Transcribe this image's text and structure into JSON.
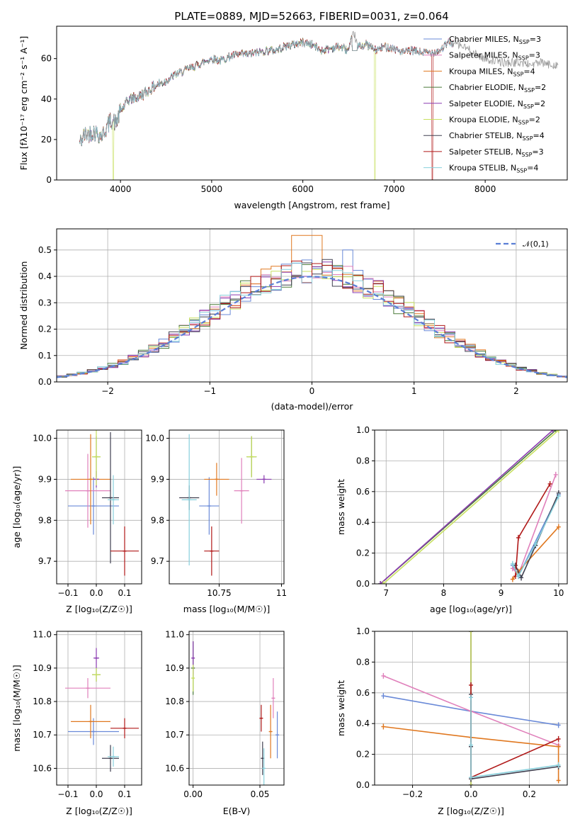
{
  "figure": {
    "title": "PLATE=0889, MJD=52663, FIBERID=0031, z=0.064"
  },
  "colors": {
    "chabrier_miles": "#6a8ad8",
    "salpeter_miles": "#e080bb",
    "kroupa_miles": "#e07820",
    "chabrier_elodie": "#4a7a3a",
    "salpeter_elodie": "#8a3ab0",
    "kroupa_elodie": "#c8e060",
    "chabrier_stelib": "#404050",
    "salpeter_stelib": "#b01818",
    "kroupa_stelib": "#88d0dc",
    "gauss": "#5b7fd6",
    "grid": "#b0b0b0"
  },
  "chart_data": [
    {
      "id": "spectrum",
      "type": "line",
      "title": "PLATE=0889, MJD=52663, FIBERID=0031, z=0.064",
      "xlabel": "wavelength [Angstrom, rest frame]",
      "ylabel": "Flux [fλ10⁻¹⁷ erg cm⁻² s⁻¹ A⁻¹]",
      "xlim": [
        3300,
        8900
      ],
      "ylim": [
        0,
        76
      ],
      "xticks": [
        4000,
        5000,
        6000,
        7000,
        8000
      ],
      "yticks": [
        0,
        20,
        40,
        60
      ],
      "grid": false,
      "legend_position": "top-right",
      "legend": [
        "Chabrier MILES, N_SSP=3",
        "Salpeter MILES, N_SSP=3",
        "Kroupa MILES, N_SSP=4",
        "Chabrier ELODIE, N_SSP=2",
        "Salpeter ELODIE, N_SSP=2",
        "Kroupa ELODIE, N_SSP=2",
        "Chabrier STELIB, N_SSP=4",
        "Salpeter STELIB, N_SSP=3",
        "Kroupa STELIB, N_SSP=4"
      ],
      "data_curve": {
        "x": [
          3550,
          3600,
          3700,
          3800,
          3850,
          3900,
          3950,
          4000,
          4050,
          4100,
          4200,
          4300,
          4400,
          4500,
          4600,
          4700,
          4800,
          4900,
          5000,
          5100,
          5200,
          5300,
          5400,
          5500,
          5600,
          5700,
          5800,
          5900,
          6000,
          6100,
          6200,
          6300,
          6400,
          6500,
          6560,
          6600,
          6700,
          6800,
          6900,
          7000,
          7100,
          7200,
          7300,
          7400,
          7500,
          7600,
          7700,
          7800,
          7900,
          8000,
          8100,
          8200,
          8300,
          8400,
          8500,
          8600,
          8700,
          8800
        ],
        "y": [
          18,
          22,
          24,
          22,
          26,
          30,
          28,
          34,
          37,
          40,
          41,
          44,
          47,
          49,
          52,
          54,
          56,
          58,
          60,
          59,
          61,
          62,
          62,
          63,
          64,
          64,
          66,
          67,
          68,
          67,
          64,
          65,
          66,
          64,
          73,
          66,
          67,
          64,
          66,
          65,
          63,
          64,
          63,
          63,
          64,
          68,
          67,
          65,
          62,
          60,
          59,
          58,
          58,
          58,
          57,
          58,
          57,
          57
        ]
      },
      "model_dropouts": [
        {
          "series": "Kroupa ELODIE",
          "x": 3920
        },
        {
          "series": "Kroupa ELODIE",
          "x": 6790
        },
        {
          "series": "Salpeter STELIB",
          "x": 7420
        }
      ]
    },
    {
      "id": "residuals",
      "type": "histogram",
      "xlabel": "(data-model)/error",
      "ylabel": "Normed distribution",
      "xlim": [
        -2.5,
        2.5
      ],
      "ylim": [
        0,
        0.58
      ],
      "xticks": [
        -2,
        -1,
        0,
        1,
        2
      ],
      "yticks": [
        0.0,
        0.1,
        0.2,
        0.3,
        0.4,
        0.5
      ],
      "grid": true,
      "legend_position": "top-right",
      "legend": [
        "𝒩(0,1)"
      ],
      "gaussian": {
        "mean": 0,
        "sigma": 1
      },
      "bin_width": 0.1
    },
    {
      "id": "age_vs_Z",
      "type": "errorbar",
      "xlabel": "Z [log₁₀(Z/Z☉)]",
      "ylabel": "age [log₁₀(age/yr)]",
      "xlim": [
        -0.14,
        0.16
      ],
      "ylim": [
        9.645,
        10.02
      ],
      "xticks": [
        -0.1,
        0.0,
        0.1
      ],
      "yticks": [
        9.7,
        9.8,
        9.9,
        10.0
      ],
      "grid": true,
      "points": [
        {
          "series": "Chabrier MILES",
          "x": -0.01,
          "y": 9.835,
          "xerr": 0.09,
          "yerr": 0.07
        },
        {
          "series": "Salpeter MILES",
          "x": -0.03,
          "y": 9.872,
          "xerr": 0.08,
          "yerr": 0.09
        },
        {
          "series": "Kroupa MILES",
          "x": -0.02,
          "y": 9.9,
          "xerr": 0.07,
          "yerr": 0.11
        },
        {
          "series": "Chabrier ELODIE",
          "x": 0.0,
          "y": 9.955,
          "xerr": 0.015,
          "yerr": 0.05
        },
        {
          "series": "Salpeter ELODIE",
          "x": 0.0,
          "y": 9.9,
          "xerr": 0.01,
          "yerr": 0.02
        },
        {
          "series": "Kroupa ELODIE",
          "x": 0.0,
          "y": 9.955,
          "xerr": 0.015,
          "yerr": 0.07
        },
        {
          "series": "Chabrier STELIB",
          "x": 0.05,
          "y": 9.855,
          "xerr": 0.03,
          "yerr": 0.16
        },
        {
          "series": "Salpeter STELIB",
          "x": 0.1,
          "y": 9.725,
          "xerr": 0.05,
          "yerr": 0.06
        },
        {
          "series": "Kroupa STELIB",
          "x": 0.06,
          "y": 9.85,
          "xerr": 0.02,
          "yerr": 0.06
        }
      ]
    },
    {
      "id": "age_vs_mass",
      "type": "errorbar",
      "xlabel": "mass [log₁₀(M/M☉)]",
      "ylabel": "",
      "xlim": [
        10.55,
        11.01
      ],
      "ylim": [
        9.645,
        10.02
      ],
      "xticks": [
        10.75,
        11.0
      ],
      "yticks": [
        9.7,
        9.8,
        9.9,
        10.0
      ],
      "grid": true,
      "points": [
        {
          "series": "Chabrier MILES",
          "x": 10.71,
          "y": 9.835,
          "xerr": 0.04,
          "yerr": 0.07
        },
        {
          "series": "Salpeter MILES",
          "x": 10.84,
          "y": 9.872,
          "xerr": 0.03,
          "yerr": 0.08
        },
        {
          "series": "Kroupa MILES",
          "x": 10.74,
          "y": 9.9,
          "xerr": 0.05,
          "yerr": 0.04
        },
        {
          "series": "Chabrier ELODIE",
          "x": 10.88,
          "y": 9.955,
          "xerr": 0.02,
          "yerr": 0.05
        },
        {
          "series": "Salpeter ELODIE",
          "x": 10.93,
          "y": 9.9,
          "xerr": 0.03,
          "yerr": 0.01
        },
        {
          "series": "Kroupa ELODIE",
          "x": 10.88,
          "y": 9.955,
          "xerr": 0.02,
          "yerr": 0.05
        },
        {
          "series": "Chabrier STELIB",
          "x": 10.63,
          "y": 9.855,
          "xerr": 0.04,
          "yerr": 0.03
        },
        {
          "series": "Salpeter STELIB",
          "x": 10.72,
          "y": 9.725,
          "xerr": 0.03,
          "yerr": 0.06
        },
        {
          "series": "Kroupa STELIB",
          "x": 10.63,
          "y": 9.85,
          "xerr": 0.03,
          "yerr": 0.16
        }
      ]
    },
    {
      "id": "weight_vs_age",
      "type": "line",
      "xlabel": "age [log₁₀(age/yr)]",
      "ylabel": "mass weight",
      "xlim": [
        6.8,
        10.15
      ],
      "ylim": [
        0,
        1.0
      ],
      "xticks": [
        7,
        8,
        9,
        10
      ],
      "yticks": [
        0.0,
        0.2,
        0.4,
        0.6,
        0.8,
        1.0
      ],
      "grid": true,
      "series": [
        {
          "name": "Chabrier MILES",
          "x": [
            9.2,
            9.3,
            10.0
          ],
          "y": [
            0.12,
            0.05,
            0.58
          ]
        },
        {
          "name": "Salpeter MILES",
          "x": [
            9.2,
            9.3,
            9.95
          ],
          "y": [
            0.1,
            0.06,
            0.71
          ]
        },
        {
          "name": "Kroupa MILES",
          "x": [
            9.2,
            9.3,
            10.0
          ],
          "y": [
            0.03,
            0.08,
            0.37
          ]
        },
        {
          "name": "Chabrier ELODIE",
          "x": [
            6.9,
            9.95
          ],
          "y": [
            0.0,
            1.0
          ]
        },
        {
          "name": "Salpeter ELODIE",
          "x": [
            6.9,
            9.9
          ],
          "y": [
            0.0,
            1.0
          ]
        },
        {
          "name": "Kroupa ELODIE",
          "x": [
            6.95,
            10.0
          ],
          "y": [
            0.0,
            1.0
          ]
        },
        {
          "name": "Chabrier STELIB",
          "x": [
            9.25,
            9.35,
            9.6,
            10.0
          ],
          "y": [
            0.12,
            0.04,
            0.25,
            0.59
          ]
        },
        {
          "name": "Salpeter STELIB",
          "x": [
            9.25,
            9.3,
            9.85
          ],
          "y": [
            0.05,
            0.3,
            0.65
          ]
        },
        {
          "name": "Kroupa STELIB",
          "x": [
            9.2,
            9.3,
            9.6,
            10.0
          ],
          "y": [
            0.13,
            0.05,
            0.26,
            0.57
          ]
        }
      ]
    },
    {
      "id": "mass_vs_Z",
      "type": "errorbar",
      "xlabel": "Z [log₁₀(Z/Z☉)]",
      "ylabel": "mass [log₁₀(M/M☉)]",
      "xlim": [
        -0.14,
        0.16
      ],
      "ylim": [
        10.55,
        11.01
      ],
      "xticks": [
        -0.1,
        0.0,
        0.1
      ],
      "yticks": [
        10.6,
        10.7,
        10.8,
        10.9,
        11.0
      ],
      "grid": true,
      "points": [
        {
          "series": "Chabrier MILES",
          "x": -0.01,
          "y": 10.71,
          "xerr": 0.09,
          "yerr": 0.04
        },
        {
          "series": "Salpeter MILES",
          "x": -0.03,
          "y": 10.84,
          "xerr": 0.08,
          "yerr": 0.03
        },
        {
          "series": "Kroupa MILES",
          "x": -0.02,
          "y": 10.74,
          "xerr": 0.07,
          "yerr": 0.05
        },
        {
          "series": "Chabrier ELODIE",
          "x": 0.0,
          "y": 10.88,
          "xerr": 0.015,
          "yerr": 0.02
        },
        {
          "series": "Salpeter ELODIE",
          "x": 0.0,
          "y": 10.93,
          "xerr": 0.01,
          "yerr": 0.03
        },
        {
          "series": "Kroupa ELODIE",
          "x": 0.0,
          "y": 10.88,
          "xerr": 0.015,
          "yerr": 0.02
        },
        {
          "series": "Chabrier STELIB",
          "x": 0.05,
          "y": 10.63,
          "xerr": 0.03,
          "yerr": 0.04
        },
        {
          "series": "Salpeter STELIB",
          "x": 0.1,
          "y": 10.72,
          "xerr": 0.05,
          "yerr": 0.03
        },
        {
          "series": "Kroupa STELIB",
          "x": 0.06,
          "y": 10.635,
          "xerr": 0.02,
          "yerr": 0.03
        }
      ]
    },
    {
      "id": "mass_vs_ebv",
      "type": "errorbar",
      "xlabel": "E(B-V)",
      "ylabel": "",
      "xlim": [
        -0.003,
        0.068
      ],
      "ylim": [
        10.55,
        11.01
      ],
      "xticks": [
        0.0,
        0.05
      ],
      "xtick_labels": [
        "0.00",
        "0.05"
      ],
      "yticks": [
        10.6,
        10.7,
        10.8,
        10.9,
        11.0
      ],
      "grid": true,
      "points": [
        {
          "series": "Chabrier MILES",
          "x": 0.063,
          "y": 10.7,
          "xerr": 0.0,
          "yerr": 0.07
        },
        {
          "series": "Salpeter MILES",
          "x": 0.06,
          "y": 10.81,
          "xerr": 0.0,
          "yerr": 0.06
        },
        {
          "series": "Kroupa MILES",
          "x": 0.058,
          "y": 10.71,
          "xerr": 0.0,
          "yerr": 0.08
        },
        {
          "series": "Chabrier ELODIE",
          "x": 0.0,
          "y": 10.9,
          "xerr": 0.0,
          "yerr": 0.08
        },
        {
          "series": "Salpeter ELODIE",
          "x": 0.0,
          "y": 10.93,
          "xerr": 0.0,
          "yerr": 0.05
        },
        {
          "series": "Kroupa ELODIE",
          "x": 0.0,
          "y": 10.87,
          "xerr": 0.0,
          "yerr": 0.04
        },
        {
          "series": "Chabrier STELIB",
          "x": 0.052,
          "y": 10.63,
          "xerr": 0.0,
          "yerr": 0.05
        },
        {
          "series": "Salpeter STELIB",
          "x": 0.051,
          "y": 10.75,
          "xerr": 0.0,
          "yerr": 0.04
        },
        {
          "series": "Kroupa STELIB",
          "x": 0.053,
          "y": 10.6,
          "xerr": 0.0,
          "yerr": 0.06
        }
      ]
    },
    {
      "id": "weight_vs_Z",
      "type": "line",
      "xlabel": "Z [log₁₀(Z/Z☉)]",
      "ylabel": "mass weight",
      "xlim": [
        -0.33,
        0.33
      ],
      "ylim": [
        0,
        1.0
      ],
      "xticks": [
        -0.2,
        0.0,
        0.2
      ],
      "yticks": [
        0.0,
        0.2,
        0.4,
        0.6,
        0.8,
        1.0
      ],
      "grid": true,
      "series": [
        {
          "name": "Chabrier MILES",
          "x": [
            -0.3,
            0.0,
            0.3
          ],
          "y": [
            0.58,
            0.48,
            0.39
          ]
        },
        {
          "name": "Salpeter MILES",
          "x": [
            -0.3,
            0.0,
            0.3
          ],
          "y": [
            0.71,
            0.48,
            0.26
          ]
        },
        {
          "name": "Kroupa MILES",
          "x": [
            -0.3,
            0.0,
            0.3,
            0.3
          ],
          "y": [
            0.38,
            0.31,
            0.25,
            0.03
          ]
        },
        {
          "name": "Chabrier ELODIE",
          "x": [
            0.0,
            0.0
          ],
          "y": [
            0.0,
            1.0
          ]
        },
        {
          "name": "Salpeter ELODIE",
          "x": [
            0.0,
            0.0
          ],
          "y": [
            0.0,
            1.0
          ]
        },
        {
          "name": "Kroupa ELODIE",
          "x": [
            0.0,
            0.0
          ],
          "y": [
            0.0,
            1.0
          ]
        },
        {
          "name": "Chabrier STELIB",
          "x": [
            0.0,
            0.0,
            0.0,
            0.3
          ],
          "y": [
            0.59,
            0.25,
            0.04,
            0.12
          ]
        },
        {
          "name": "Salpeter STELIB",
          "x": [
            0.0,
            0.0,
            0.3
          ],
          "y": [
            0.65,
            0.05,
            0.3
          ]
        },
        {
          "name": "Kroupa STELIB",
          "x": [
            0.0,
            0.0,
            0.0,
            0.3
          ],
          "y": [
            0.57,
            0.26,
            0.05,
            0.13
          ]
        }
      ]
    }
  ]
}
